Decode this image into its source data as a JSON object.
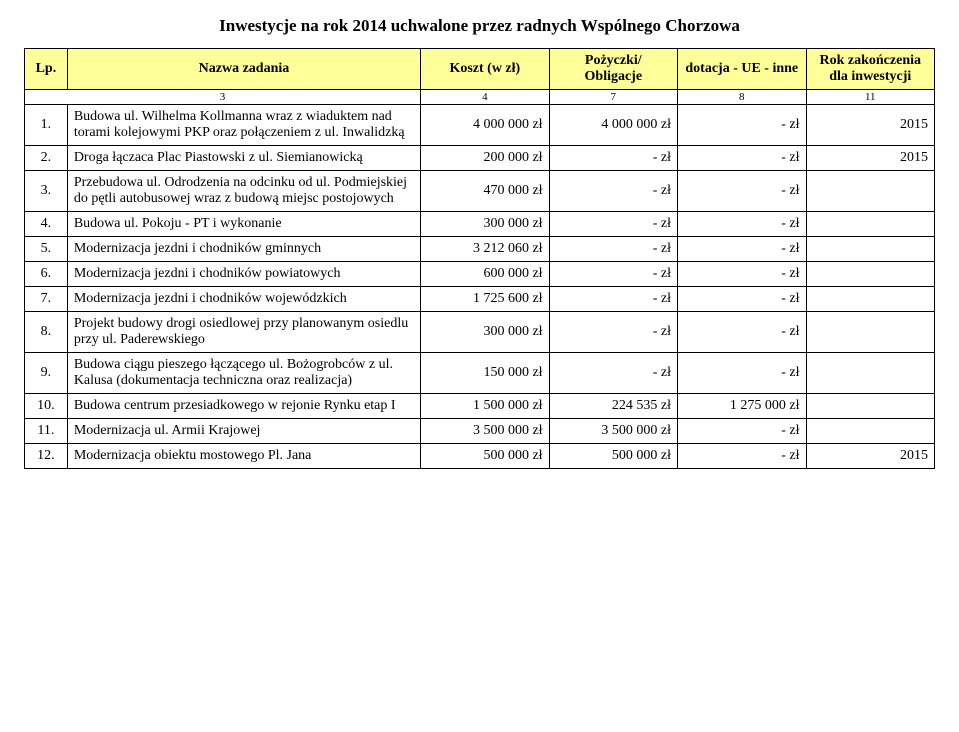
{
  "title": "Inwestycje na rok 2014 uchwalone przez radnych Wspólnego Chorzowa",
  "header": {
    "lp": "Lp.",
    "name": "Nazwa zadania",
    "koszt": "Koszt\n(w zł)",
    "pozyczki": "Pożyczki/\nObligacje",
    "dotacja": "dotacja\n- UE\n- inne",
    "rok": "Rok zakończenia\ndla inwestycji"
  },
  "colnums": {
    "c2": "3",
    "c3": "4",
    "c4": "7",
    "c5": "8",
    "c6": "11"
  },
  "rows": [
    {
      "lp": "1.",
      "name": "Budowa ul. Wilhelma Kollmanna wraz z wiaduktem nad torami kolejowymi PKP oraz połączeniem z ul. Inwalidzką",
      "koszt": "4 000 000 zł",
      "poz": "4 000 000 zł",
      "dot": "- zł",
      "rok": "2015"
    },
    {
      "lp": "2.",
      "name": "Droga łączaca Plac Piastowski z ul. Siemianowicką",
      "koszt": "200 000 zł",
      "poz": "- zł",
      "dot": "- zł",
      "rok": "2015"
    },
    {
      "lp": "3.",
      "name": "Przebudowa ul. Odrodzenia na odcinku od ul. Podmiejskiej do pętli autobusowej wraz z budową miejsc postojowych",
      "koszt": "470 000 zł",
      "poz": "- zł",
      "dot": "- zł",
      "rok": ""
    },
    {
      "lp": "4.",
      "name": "Budowa ul. Pokoju - PT i wykonanie",
      "koszt": "300 000 zł",
      "poz": "- zł",
      "dot": "- zł",
      "rok": ""
    },
    {
      "lp": "5.",
      "name": "Modernizacja jezdni i chodników gminnych",
      "koszt": "3 212 060 zł",
      "poz": "- zł",
      "dot": "- zł",
      "rok": ""
    },
    {
      "lp": "6.",
      "name": "Modernizacja jezdni i chodników powiatowych",
      "koszt": "600 000 zł",
      "poz": "- zł",
      "dot": "- zł",
      "rok": ""
    },
    {
      "lp": "7.",
      "name": "Modernizacja jezdni i chodników wojewódzkich",
      "koszt": "1 725 600 zł",
      "poz": "- zł",
      "dot": "- zł",
      "rok": ""
    },
    {
      "lp": "8.",
      "name": "Projekt budowy drogi osiedlowej przy planowanym osiedlu przy ul. Paderewskiego",
      "koszt": "300 000 zł",
      "poz": "- zł",
      "dot": "- zł",
      "rok": ""
    },
    {
      "lp": "9.",
      "name": "Budowa ciągu pieszego łączącego ul. Bożogrobców z ul. Kalusa (dokumentacja techniczna oraz realizacja)",
      "koszt": "150 000 zł",
      "poz": "- zł",
      "dot": "- zł",
      "rok": ""
    },
    {
      "lp": "10.",
      "name": "Budowa centrum przesiadkowego w rejonie Rynku etap I",
      "koszt": "1 500 000 zł",
      "poz": "224 535 zł",
      "dot": "1 275 000 zł",
      "rok": ""
    },
    {
      "lp": "11.",
      "name": "Modernizacja ul. Armii Krajowej",
      "koszt": "3 500 000 zł",
      "poz": "3 500 000 zł",
      "dot": "- zł",
      "rok": ""
    },
    {
      "lp": "12.",
      "name": "Modernizacja obiektu mostowego Pl. Jana",
      "koszt": "500 000 zł",
      "poz": "500 000 zł",
      "dot": "- zł",
      "rok": "2015"
    }
  ],
  "style": {
    "header_bg": "#ffff99",
    "border_color": "#000000",
    "page_bg": "#ffffff",
    "font_title_pt": 17,
    "font_body_pt": 14
  }
}
